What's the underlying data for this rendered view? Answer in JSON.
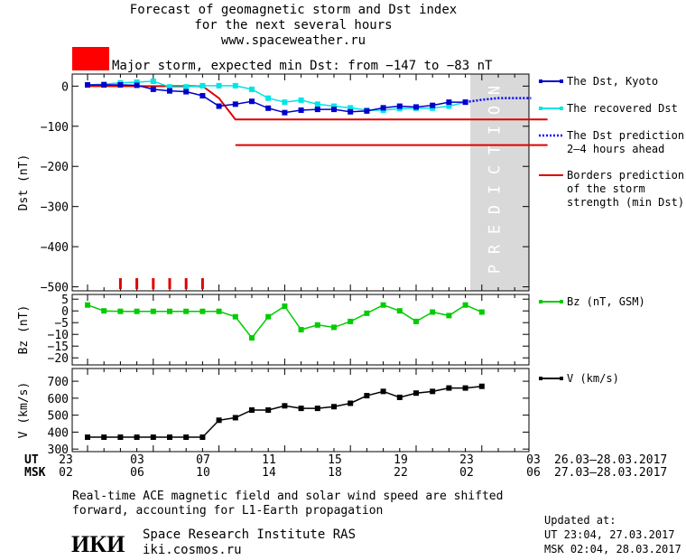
{
  "header": {
    "line1": "Forecast of geomagnetic storm and Dst index",
    "line2": "for the next several hours",
    "line3": "www.spaceweather.ru",
    "storm_text": "Major storm, expected min Dst: from −147 to −83 nT",
    "storm_color": "#ff0000"
  },
  "legend": {
    "dst_kyoto": "The Dst, Kyoto",
    "recovered": "The recovered Dst",
    "prediction_1": "The Dst prediction",
    "prediction_2": "2–4 hours ahead",
    "borders_1": "Borders prediction",
    "borders_2": "of the storm",
    "borders_3": "strength (min Dst)",
    "bz": "Bz (nT, GSM)",
    "v": "V (km/s)"
  },
  "prediction_label": "PREDICTION",
  "axis_rows": {
    "ut_label": "UT",
    "msk_label": "MSK",
    "ut_ticks": [
      "23",
      "03",
      "07",
      "11",
      "15",
      "19",
      "23",
      "03"
    ],
    "msk_ticks": [
      "02",
      "06",
      "10",
      "14",
      "18",
      "22",
      "02",
      "06"
    ],
    "ut_range": "26.03–28.03.2017",
    "msk_range": "27.03–28.03.2017"
  },
  "footer": {
    "note_1": "Real-time ACE magnetic field and solar wind speed are shifted",
    "note_2": "forward, accounting for L1-Earth propagation",
    "logo": "ИКИ",
    "org": "Space Research Institute RAS",
    "site": "iki.cosmos.ru",
    "updated_label": "Updated at:",
    "updated_ut": "UT  23:04, 27.03.2017",
    "updated_msk": "MSK 02:04, 28.03.2017"
  },
  "colors": {
    "dst": "#0000cc",
    "recovered": "#00e5e5",
    "prediction": "#0000ff",
    "borders": "#e00000",
    "bz": "#00cc00",
    "v": "#000000",
    "prediction_band": "#d9d9d9"
  },
  "chart_data": [
    {
      "type": "line",
      "ylabel": "Dst (nT)",
      "xlim": [
        0,
        28
      ],
      "ylim": [
        -510,
        30
      ],
      "yticks": [
        0,
        -100,
        -200,
        -300,
        -400,
        -500
      ],
      "prediction_region": [
        23.3,
        27.2
      ],
      "series": [
        {
          "name": "The Dst, Kyoto",
          "x": [
            0,
            1,
            2,
            3,
            4,
            5,
            6,
            7,
            8,
            9,
            10,
            11,
            12,
            13,
            14,
            15,
            16,
            17,
            18,
            19,
            20,
            21,
            22,
            23
          ],
          "y": [
            3,
            3,
            3,
            2,
            -8,
            -12,
            -14,
            -24,
            -50,
            -45,
            -38,
            -55,
            -66,
            -60,
            -58,
            -58,
            -64,
            -62,
            -54,
            -50,
            -52,
            -48,
            -40,
            -40
          ]
        },
        {
          "name": "The recovered Dst",
          "x": [
            0,
            1,
            2,
            3,
            4,
            5,
            6,
            7,
            8,
            9,
            10,
            11,
            12,
            13,
            14,
            15,
            16,
            17,
            18,
            19,
            20,
            21,
            22,
            23
          ],
          "y": [
            3,
            5,
            8,
            10,
            12,
            -2,
            -2,
            1,
            1,
            1,
            -8,
            -30,
            -40,
            -35,
            -45,
            -50,
            -54,
            -60,
            -60,
            -56,
            -55,
            -55,
            -50,
            -40
          ]
        },
        {
          "name": "The Dst prediction 2–4 hours ahead",
          "x": [
            23,
            24,
            25,
            26,
            27
          ],
          "y": [
            -40,
            -34,
            -30,
            -30,
            -30
          ]
        },
        {
          "name": "Borders prediction of the storm strength (min Dst)",
          "segments": [
            {
              "x": [
                0,
                7,
                8,
                9,
                28
              ],
              "y": [
                0,
                0,
                -30,
                -83,
                -83
              ]
            },
            {
              "x": [
                9,
                28
              ],
              "y": [
                -147,
                -147
              ]
            }
          ]
        }
      ],
      "storm_ticks_x": [
        2,
        3,
        4,
        5,
        6,
        7
      ]
    },
    {
      "type": "line",
      "ylabel": "Bz (nT)",
      "xlim": [
        0,
        28
      ],
      "ylim": [
        -23,
        7
      ],
      "yticks": [
        5,
        0,
        -5,
        -10,
        -15,
        -20
      ],
      "series": [
        {
          "name": "Bz (nT, GSM)",
          "x": [
            0,
            1,
            2,
            3,
            4,
            5,
            6,
            7,
            8,
            9,
            10,
            11,
            12,
            13,
            14,
            15,
            16,
            17,
            18,
            19,
            20,
            21,
            22,
            23,
            24
          ],
          "y": [
            2.5,
            0,
            -0.2,
            -0.2,
            -0.2,
            -0.2,
            -0.2,
            -0.2,
            -0.2,
            -2.5,
            -11.5,
            -2.5,
            2,
            -8,
            -6,
            -7,
            -4.5,
            -1,
            2.5,
            0,
            -4.5,
            -0.5,
            -2,
            2.5,
            -0.5
          ]
        }
      ]
    },
    {
      "type": "line",
      "ylabel": "V (km/s)",
      "xlim": [
        0,
        28
      ],
      "ylim": [
        285,
        775
      ],
      "yticks": [
        300,
        400,
        500,
        600,
        700
      ],
      "series": [
        {
          "name": "V (km/s)",
          "x": [
            0,
            1,
            2,
            3,
            4,
            5,
            6,
            7,
            8,
            9,
            10,
            11,
            12,
            13,
            14,
            15,
            16,
            17,
            18,
            19,
            20,
            21,
            22,
            23,
            24
          ],
          "y": [
            370,
            370,
            370,
            370,
            370,
            370,
            370,
            370,
            470,
            485,
            530,
            530,
            555,
            540,
            540,
            550,
            570,
            615,
            640,
            605,
            630,
            640,
            660,
            660,
            670
          ]
        }
      ]
    }
  ]
}
